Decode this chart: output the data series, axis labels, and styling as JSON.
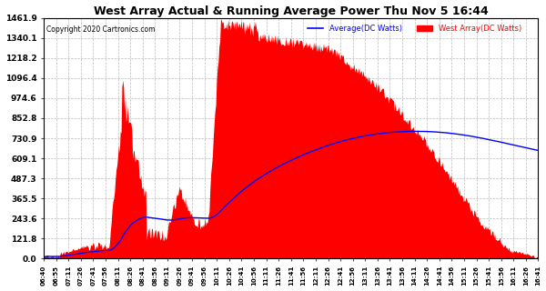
{
  "title": "West Array Actual & Running Average Power Thu Nov 5 16:44",
  "copyright": "Copyright 2020 Cartronics.com",
  "legend_avg": "Average(DC Watts)",
  "legend_west": "West Array(DC Watts)",
  "yticks": [
    0.0,
    121.8,
    243.6,
    365.5,
    487.3,
    609.1,
    730.9,
    852.8,
    974.6,
    1096.4,
    1218.2,
    1340.1,
    1461.9
  ],
  "ymax": 1461.9,
  "ymin": 0.0,
  "bg_color": "#ffffff",
  "grid_color": "#aaaaaa",
  "bar_color": "#ff0000",
  "avg_color": "#0000ff",
  "title_color": "#000000",
  "copyright_color": "#000000",
  "legend_avg_color": "#0000ff",
  "legend_west_color": "#ff0000",
  "xtick_labels": [
    "06:40",
    "06:55",
    "07:11",
    "07:26",
    "07:41",
    "07:56",
    "08:11",
    "08:26",
    "08:41",
    "08:56",
    "09:11",
    "09:26",
    "09:41",
    "09:56",
    "10:11",
    "10:26",
    "10:41",
    "10:56",
    "11:11",
    "11:26",
    "11:41",
    "11:56",
    "12:11",
    "12:26",
    "12:41",
    "12:56",
    "13:11",
    "13:26",
    "13:41",
    "13:56",
    "14:11",
    "14:26",
    "14:41",
    "14:56",
    "15:11",
    "15:26",
    "15:41",
    "15:56",
    "16:11",
    "16:26",
    "16:41"
  ]
}
